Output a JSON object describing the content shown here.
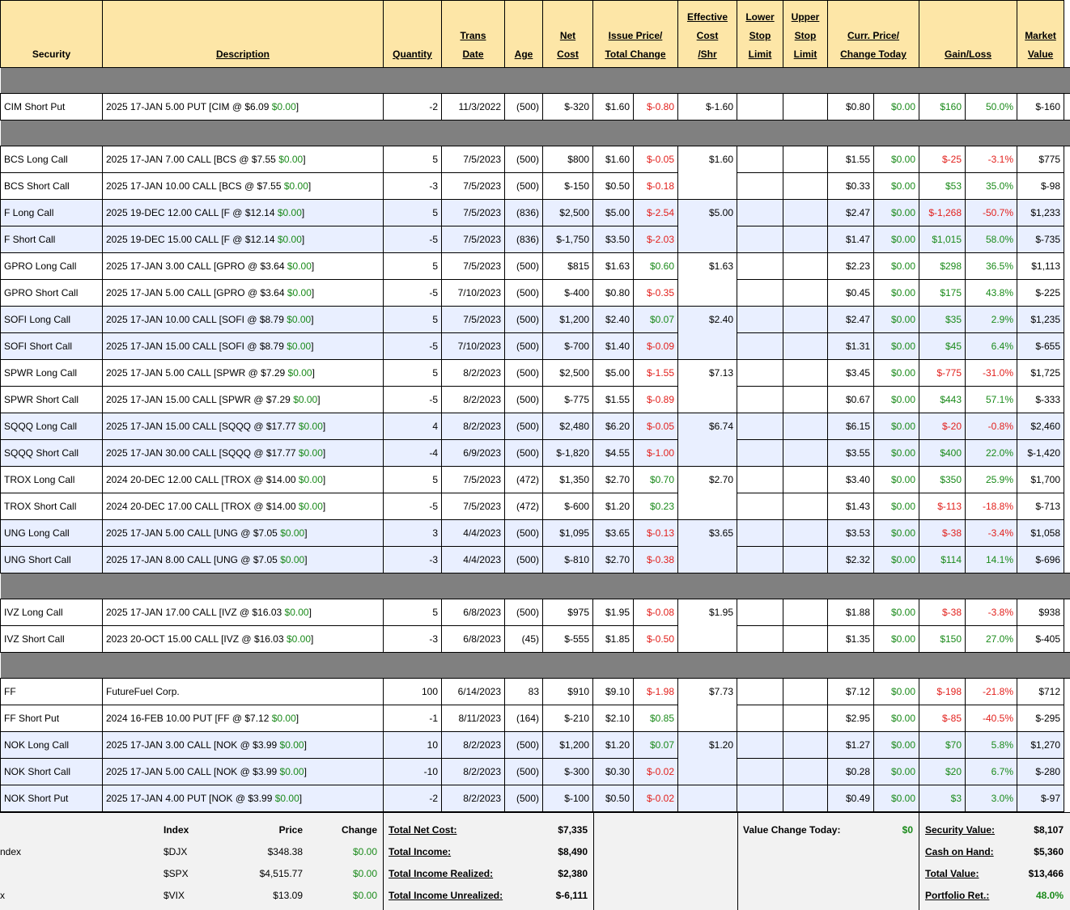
{
  "headers": {
    "security": "Security",
    "description": "Description",
    "quantity": "Quantity",
    "trans_date": [
      "Trans",
      "Date"
    ],
    "age": "Age",
    "net_cost": [
      "Net",
      "Cost"
    ],
    "issue_price": [
      "Issue Price/",
      "Total Change"
    ],
    "effective_cost": [
      "Effective",
      "Cost",
      "/Shr"
    ],
    "lower_stop": [
      "Lower",
      "Stop",
      "Limit"
    ],
    "upper_stop": [
      "Upper",
      "Stop",
      "Limit"
    ],
    "curr_price": [
      "Curr. Price/",
      "Change Today"
    ],
    "gain_loss": "Gain/Loss",
    "market_value": [
      "Market",
      "Value"
    ]
  },
  "colors": {
    "header_bg": "#fde6a7",
    "separator": "#808080",
    "row_blue": "#e9efff",
    "negative": "#e2201c",
    "positive": "#1a8a1a",
    "summary_bg": "#f2f2f2"
  },
  "groups": [
    {
      "rows": [
        {
          "security": "CIM Short Put",
          "desc": "2025 17-JAN 5.00 PUT [CIM @ $6.09 ",
          "desc_chg": "$0.00",
          "desc_end": "]",
          "qty": "-2",
          "date": "11/3/2022",
          "age": "(500)",
          "net_cost": "$-320",
          "issue": "$1.60",
          "total_chg": "$-0.80",
          "total_chg_color": "red",
          "eff": "$-1.60",
          "curr": "$0.80",
          "chg_today": "$0.00",
          "gain": "$160",
          "gain_color": "grn",
          "pct": "50.0%",
          "mv": "$-160",
          "blue": false
        }
      ]
    },
    {
      "rows": [
        {
          "security": "BCS Long Call",
          "desc": "2025 17-JAN 7.00 CALL [BCS @ $7.55 ",
          "desc_chg": "$0.00",
          "desc_end": "]",
          "qty": "5",
          "date": "7/5/2023",
          "age": "(500)",
          "net_cost": "$800",
          "issue": "$1.60",
          "total_chg": "$-0.05",
          "total_chg_color": "red",
          "eff": "$1.60",
          "curr": "$1.55",
          "chg_today": "$0.00",
          "gain": "$-25",
          "gain_color": "red",
          "pct": "-3.1%",
          "mv": "$775",
          "blue": false
        },
        {
          "security": "BCS Short Call",
          "desc": "2025 17-JAN 10.00 CALL [BCS @ $7.55 ",
          "desc_chg": "$0.00",
          "desc_end": "]",
          "qty": "-3",
          "date": "7/5/2023",
          "age": "(500)",
          "net_cost": "$-150",
          "issue": "$0.50",
          "total_chg": "$-0.18",
          "total_chg_color": "red",
          "eff": "",
          "curr": "$0.33",
          "chg_today": "$0.00",
          "gain": "$53",
          "gain_color": "grn",
          "pct": "35.0%",
          "mv": "$-98",
          "blue": false
        },
        {
          "security": "F Long Call",
          "desc": "2025 19-DEC 12.00 CALL [F @ $12.14 ",
          "desc_chg": "$0.00",
          "desc_end": "]",
          "qty": "5",
          "date": "7/5/2023",
          "age": "(836)",
          "net_cost": "$2,500",
          "issue": "$5.00",
          "total_chg": "$-2.54",
          "total_chg_color": "red",
          "eff": "$5.00",
          "curr": "$2.47",
          "chg_today": "$0.00",
          "gain": "$-1,268",
          "gain_color": "red",
          "pct": "-50.7%",
          "mv": "$1,233",
          "blue": true
        },
        {
          "security": "F Short Call",
          "desc": "2025 19-DEC 15.00 CALL [F @ $12.14 ",
          "desc_chg": "$0.00",
          "desc_end": "]",
          "qty": "-5",
          "date": "7/5/2023",
          "age": "(836)",
          "net_cost": "$-1,750",
          "issue": "$3.50",
          "total_chg": "$-2.03",
          "total_chg_color": "red",
          "eff": "",
          "curr": "$1.47",
          "chg_today": "$0.00",
          "gain": "$1,015",
          "gain_color": "grn",
          "pct": "58.0%",
          "mv": "$-735",
          "blue": true
        },
        {
          "security": "GPRO Long Call",
          "desc": "2025 17-JAN 3.00 CALL [GPRO @ $3.64 ",
          "desc_chg": "$0.00",
          "desc_end": "]",
          "qty": "5",
          "date": "7/5/2023",
          "age": "(500)",
          "net_cost": "$815",
          "issue": "$1.63",
          "total_chg": "$0.60",
          "total_chg_color": "grn",
          "eff": "$1.63",
          "curr": "$2.23",
          "chg_today": "$0.00",
          "gain": "$298",
          "gain_color": "grn",
          "pct": "36.5%",
          "mv": "$1,113",
          "blue": false
        },
        {
          "security": "GPRO Short Call",
          "desc": "2025 17-JAN 5.00 CALL [GPRO @ $3.64 ",
          "desc_chg": "$0.00",
          "desc_end": "]",
          "qty": "-5",
          "date": "7/10/2023",
          "age": "(500)",
          "net_cost": "$-400",
          "issue": "$0.80",
          "total_chg": "$-0.35",
          "total_chg_color": "red",
          "eff": "",
          "curr": "$0.45",
          "chg_today": "$0.00",
          "gain": "$175",
          "gain_color": "grn",
          "pct": "43.8%",
          "mv": "$-225",
          "blue": false
        },
        {
          "security": "SOFI Long Call",
          "desc": "2025 17-JAN 10.00 CALL [SOFI @ $8.79 ",
          "desc_chg": "$0.00",
          "desc_end": "]",
          "qty": "5",
          "date": "7/5/2023",
          "age": "(500)",
          "net_cost": "$1,200",
          "issue": "$2.40",
          "total_chg": "$0.07",
          "total_chg_color": "grn",
          "eff": "$2.40",
          "curr": "$2.47",
          "chg_today": "$0.00",
          "gain": "$35",
          "gain_color": "grn",
          "pct": "2.9%",
          "mv": "$1,235",
          "blue": true
        },
        {
          "security": "SOFI Short Call",
          "desc": "2025 17-JAN 15.00 CALL [SOFI @ $8.79 ",
          "desc_chg": "$0.00",
          "desc_end": "]",
          "qty": "-5",
          "date": "7/10/2023",
          "age": "(500)",
          "net_cost": "$-700",
          "issue": "$1.40",
          "total_chg": "$-0.09",
          "total_chg_color": "red",
          "eff": "",
          "curr": "$1.31",
          "chg_today": "$0.00",
          "gain": "$45",
          "gain_color": "grn",
          "pct": "6.4%",
          "mv": "$-655",
          "blue": true
        },
        {
          "security": "SPWR Long Call",
          "desc": "2025 17-JAN 5.00 CALL [SPWR @ $7.29 ",
          "desc_chg": "$0.00",
          "desc_end": "]",
          "qty": "5",
          "date": "8/2/2023",
          "age": "(500)",
          "net_cost": "$2,500",
          "issue": "$5.00",
          "total_chg": "$-1.55",
          "total_chg_color": "red",
          "eff": "$7.13",
          "curr": "$3.45",
          "chg_today": "$0.00",
          "gain": "$-775",
          "gain_color": "red",
          "pct": "-31.0%",
          "mv": "$1,725",
          "blue": false
        },
        {
          "security": "SPWR Short Call",
          "desc": "2025 17-JAN 15.00 CALL [SPWR @ $7.29 ",
          "desc_chg": "$0.00",
          "desc_end": "]",
          "qty": "-5",
          "date": "8/2/2023",
          "age": "(500)",
          "net_cost": "$-775",
          "issue": "$1.55",
          "total_chg": "$-0.89",
          "total_chg_color": "red",
          "eff": "",
          "curr": "$0.67",
          "chg_today": "$0.00",
          "gain": "$443",
          "gain_color": "grn",
          "pct": "57.1%",
          "mv": "$-333",
          "blue": false
        },
        {
          "security": "SQQQ Long Call",
          "desc": "2025 17-JAN 15.00 CALL [SQQQ @ $17.77 ",
          "desc_chg": "$0.00",
          "desc_end": "]",
          "qty": "4",
          "date": "8/2/2023",
          "age": "(500)",
          "net_cost": "$2,480",
          "issue": "$6.20",
          "total_chg": "$-0.05",
          "total_chg_color": "red",
          "eff": "$6.74",
          "curr": "$6.15",
          "chg_today": "$0.00",
          "gain": "$-20",
          "gain_color": "red",
          "pct": "-0.8%",
          "mv": "$2,460",
          "blue": true
        },
        {
          "security": "SQQQ Short Call",
          "desc": "2025 17-JAN 30.00 CALL [SQQQ @ $17.77 ",
          "desc_chg": "$0.00",
          "desc_end": "]",
          "qty": "-4",
          "date": "6/9/2023",
          "age": "(500)",
          "net_cost": "$-1,820",
          "issue": "$4.55",
          "total_chg": "$-1.00",
          "total_chg_color": "red",
          "eff": "",
          "curr": "$3.55",
          "chg_today": "$0.00",
          "gain": "$400",
          "gain_color": "grn",
          "pct": "22.0%",
          "mv": "$-1,420",
          "blue": true
        },
        {
          "security": "TROX Long Call",
          "desc": "2024 20-DEC 12.00 CALL [TROX @ $14.00 ",
          "desc_chg": "$0.00",
          "desc_end": "]",
          "qty": "5",
          "date": "7/5/2023",
          "age": "(472)",
          "net_cost": "$1,350",
          "issue": "$2.70",
          "total_chg": "$0.70",
          "total_chg_color": "grn",
          "eff": "$2.70",
          "curr": "$3.40",
          "chg_today": "$0.00",
          "gain": "$350",
          "gain_color": "grn",
          "pct": "25.9%",
          "mv": "$1,700",
          "blue": false
        },
        {
          "security": "TROX Short Call",
          "desc": "2024 20-DEC 17.00 CALL [TROX @ $14.00 ",
          "desc_chg": "$0.00",
          "desc_end": "]",
          "qty": "-5",
          "date": "7/5/2023",
          "age": "(472)",
          "net_cost": "$-600",
          "issue": "$1.20",
          "total_chg": "$0.23",
          "total_chg_color": "grn",
          "eff": "",
          "curr": "$1.43",
          "chg_today": "$0.00",
          "gain": "$-113",
          "gain_color": "red",
          "pct": "-18.8%",
          "mv": "$-713",
          "blue": false
        },
        {
          "security": "UNG Long Call",
          "desc": "2025 17-JAN 5.00 CALL [UNG @ $7.05 ",
          "desc_chg": "$0.00",
          "desc_end": "]",
          "qty": "3",
          "date": "4/4/2023",
          "age": "(500)",
          "net_cost": "$1,095",
          "issue": "$3.65",
          "total_chg": "$-0.13",
          "total_chg_color": "red",
          "eff": "$3.65",
          "curr": "$3.53",
          "chg_today": "$0.00",
          "gain": "$-38",
          "gain_color": "red",
          "pct": "-3.4%",
          "mv": "$1,058",
          "blue": true
        },
        {
          "security": "UNG Short Call",
          "desc": "2025 17-JAN 8.00 CALL [UNG @ $7.05 ",
          "desc_chg": "$0.00",
          "desc_end": "]",
          "qty": "-3",
          "date": "4/4/2023",
          "age": "(500)",
          "net_cost": "$-810",
          "issue": "$2.70",
          "total_chg": "$-0.38",
          "total_chg_color": "red",
          "eff": "",
          "curr": "$2.32",
          "chg_today": "$0.00",
          "gain": "$114",
          "gain_color": "grn",
          "pct": "14.1%",
          "mv": "$-696",
          "blue": true
        }
      ]
    },
    {
      "rows": [
        {
          "security": "IVZ Long Call",
          "desc": "2025 17-JAN 17.00 CALL [IVZ @ $16.03 ",
          "desc_chg": "$0.00",
          "desc_end": "]",
          "qty": "5",
          "date": "6/8/2023",
          "age": "(500)",
          "net_cost": "$975",
          "issue": "$1.95",
          "total_chg": "$-0.08",
          "total_chg_color": "red",
          "eff": "$1.95",
          "curr": "$1.88",
          "chg_today": "$0.00",
          "gain": "$-38",
          "gain_color": "red",
          "pct": "-3.8%",
          "mv": "$938",
          "blue": false
        },
        {
          "security": "IVZ Short Call",
          "desc": "2023 20-OCT 15.00 CALL [IVZ @ $16.03 ",
          "desc_chg": "$0.00",
          "desc_end": "]",
          "qty": "-3",
          "date": "6/8/2023",
          "age": "(45)",
          "net_cost": "$-555",
          "issue": "$1.85",
          "total_chg": "$-0.50",
          "total_chg_color": "red",
          "eff": "",
          "curr": "$1.35",
          "chg_today": "$0.00",
          "gain": "$150",
          "gain_color": "grn",
          "pct": "27.0%",
          "mv": "$-405",
          "blue": false
        }
      ]
    },
    {
      "rows": [
        {
          "security": "FF",
          "desc": "FutureFuel Corp.",
          "desc_chg": "",
          "desc_end": "",
          "qty": "100",
          "date": "6/14/2023",
          "age": "83",
          "net_cost": "$910",
          "issue": "$9.10",
          "total_chg": "$-1.98",
          "total_chg_color": "red",
          "eff": "$7.73",
          "curr": "$7.12",
          "chg_today": "$0.00",
          "gain": "$-198",
          "gain_color": "red",
          "pct": "-21.8%",
          "mv": "$712",
          "blue": false
        },
        {
          "security": "FF Short Put",
          "desc": "2024 16-FEB 10.00 PUT [FF @ $7.12 ",
          "desc_chg": "$0.00",
          "desc_end": "]",
          "qty": "-1",
          "date": "8/11/2023",
          "age": "(164)",
          "net_cost": "$-210",
          "issue": "$2.10",
          "total_chg": "$0.85",
          "total_chg_color": "grn",
          "eff": "",
          "curr": "$2.95",
          "chg_today": "$0.00",
          "gain": "$-85",
          "gain_color": "red",
          "pct": "-40.5%",
          "mv": "$-295",
          "blue": false
        },
        {
          "security": "NOK Long Call",
          "desc": "2025 17-JAN 3.00 CALL [NOK @ $3.99 ",
          "desc_chg": "$0.00",
          "desc_end": "]",
          "qty": "10",
          "date": "8/2/2023",
          "age": "(500)",
          "net_cost": "$1,200",
          "issue": "$1.20",
          "total_chg": "$0.07",
          "total_chg_color": "grn",
          "eff": "$1.20",
          "curr": "$1.27",
          "chg_today": "$0.00",
          "gain": "$70",
          "gain_color": "grn",
          "pct": "5.8%",
          "mv": "$1,270",
          "blue": true
        },
        {
          "security": "NOK Short Call",
          "desc": "2025 17-JAN 5.00 CALL [NOK @ $3.99 ",
          "desc_chg": "$0.00",
          "desc_end": "]",
          "qty": "-10",
          "date": "8/2/2023",
          "age": "(500)",
          "net_cost": "$-300",
          "issue": "$0.30",
          "total_chg": "$-0.02",
          "total_chg_color": "red",
          "eff": "",
          "curr": "$0.28",
          "chg_today": "$0.00",
          "gain": "$20",
          "gain_color": "grn",
          "pct": "6.7%",
          "mv": "$-280",
          "blue": true
        },
        {
          "security": "NOK Short Put",
          "desc": "2025 17-JAN 4.00 PUT [NOK @ $3.99 ",
          "desc_chg": "$0.00",
          "desc_end": "]",
          "qty": "-2",
          "date": "8/2/2023",
          "age": "(500)",
          "net_cost": "$-100",
          "issue": "$0.50",
          "total_chg": "$-0.02",
          "total_chg_color": "red",
          "eff": "",
          "curr": "$0.49",
          "chg_today": "$0.00",
          "gain": "$3",
          "gain_color": "grn",
          "pct": "3.0%",
          "mv": "$-97",
          "blue": true
        }
      ]
    }
  ],
  "summary": {
    "index_header": "Index",
    "price_header": "Price",
    "change_header": "Change",
    "indices": [
      {
        "name": "ndex",
        "symbol": "$DJX",
        "price": "$348.38",
        "change": "$0.00"
      },
      {
        "name": "",
        "symbol": "$SPX",
        "price": "$4,515.77",
        "change": "$0.00"
      },
      {
        "name": "x",
        "symbol": "$VIX",
        "price": "$13.09",
        "change": "$0.00"
      }
    ],
    "totals": [
      {
        "label": "Total Net Cost:",
        "value": "$7,335"
      },
      {
        "label": "Total Income:",
        "value": "$8,490"
      },
      {
        "label": "Total Income Realized:",
        "value": "$2,380"
      },
      {
        "label": "Total Income Unrealized:",
        "value": "$-6,111"
      }
    ],
    "value_change_label": "Value Change Today:",
    "value_change": "$0",
    "portfolio": [
      {
        "label": "Security Value:",
        "value": "$8,107"
      },
      {
        "label": "Cash on Hand:",
        "value": "$5,360"
      },
      {
        "label": "Total Value:",
        "value": "$13,466"
      },
      {
        "label": "Portfolio Ret.:",
        "value": "48.0%"
      }
    ]
  }
}
